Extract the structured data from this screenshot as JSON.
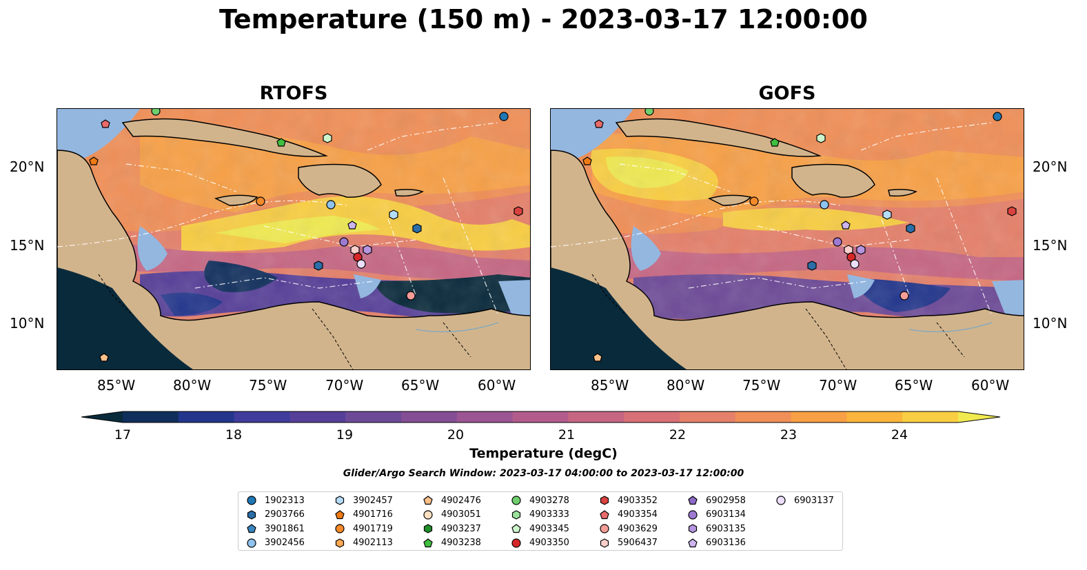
{
  "title": "Temperature (150 m) - 2023-03-17 12:00:00",
  "panels": [
    {
      "title": "RTOFS"
    },
    {
      "title": "GOFS"
    }
  ],
  "lon_ticks": [
    "85°W",
    "80°W",
    "75°W",
    "70°W",
    "65°W",
    "60°W"
  ],
  "lat_ticks": [
    "20°N",
    "15°N",
    "10°N"
  ],
  "colorbar": {
    "label": "Temperature (degC)",
    "ticks": [
      "17",
      "18",
      "19",
      "20",
      "21",
      "22",
      "23",
      "24"
    ],
    "colors": [
      "#092a3b",
      "#0f2e5c",
      "#23368c",
      "#3f3c9c",
      "#563f98",
      "#6d4a97",
      "#844e94",
      "#9b5592",
      "#b35c8c",
      "#c66683",
      "#d87177",
      "#e5806a",
      "#f08f57",
      "#f8a046",
      "#fab53c",
      "#f9ce43",
      "#f0ea50"
    ]
  },
  "search_window": "Glider/Argo Search Window: 2023-03-17 04:00:00 to 2023-03-17 12:00:00",
  "legend": [
    {
      "label": "1902313",
      "marker": "circle",
      "color": "#1f77b4"
    },
    {
      "label": "2903766",
      "marker": "hexagon",
      "color": "#2b6ea8"
    },
    {
      "label": "3901861",
      "marker": "pentagon",
      "color": "#3a87bf"
    },
    {
      "label": "3902456",
      "marker": "circle",
      "color": "#8ec2ef"
    },
    {
      "label": "3902457",
      "marker": "hexagon",
      "color": "#b6dcf7"
    },
    {
      "label": "4901716",
      "marker": "pentagon",
      "color": "#f07b14"
    },
    {
      "label": "4901719",
      "marker": "circle",
      "color": "#f48a2a"
    },
    {
      "label": "4902113",
      "marker": "hexagon",
      "color": "#fba855"
    },
    {
      "label": "4902476",
      "marker": "pentagon",
      "color": "#fcc18a"
    },
    {
      "label": "4903051",
      "marker": "circle",
      "color": "#fde0c2"
    },
    {
      "label": "4903237",
      "marker": "hexagon",
      "color": "#1f8f2a"
    },
    {
      "label": "4903238",
      "marker": "pentagon",
      "color": "#3fbf3f"
    },
    {
      "label": "4903278",
      "marker": "circle",
      "color": "#6fcf6f"
    },
    {
      "label": "4903333",
      "marker": "hexagon",
      "color": "#9be39b"
    },
    {
      "label": "4903345",
      "marker": "pentagon",
      "color": "#cdf5cd"
    },
    {
      "label": "4903350",
      "marker": "circle",
      "color": "#d62728"
    },
    {
      "label": "4903352",
      "marker": "hexagon",
      "color": "#d9423f"
    },
    {
      "label": "4903354",
      "marker": "pentagon",
      "color": "#ea6b6b"
    },
    {
      "label": "4903629",
      "marker": "circle",
      "color": "#f59d98"
    },
    {
      "label": "5906437",
      "marker": "hexagon",
      "color": "#fbd0cc"
    },
    {
      "label": "6902958",
      "marker": "pentagon",
      "color": "#8c6bc8"
    },
    {
      "label": "6903134",
      "marker": "circle",
      "color": "#9d7ad2"
    },
    {
      "label": "6903135",
      "marker": "hexagon",
      "color": "#b595e0"
    },
    {
      "label": "6903136",
      "marker": "pentagon",
      "color": "#cdb5ef"
    },
    {
      "label": "6903137",
      "marker": "circle",
      "color": "#ecdffb"
    }
  ]
}
